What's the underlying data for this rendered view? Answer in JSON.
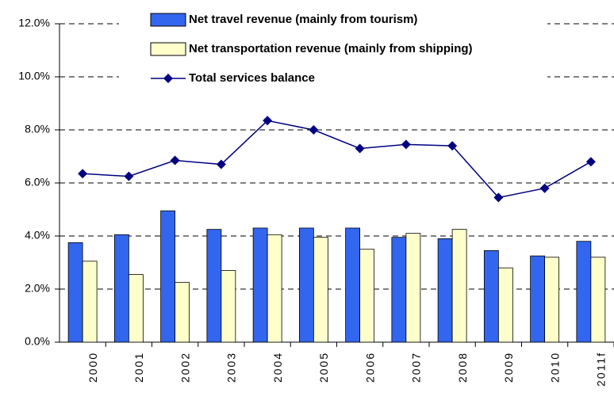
{
  "chart_data": {
    "type": "bar_line",
    "categories": [
      "2000",
      "2001",
      "2002",
      "2003",
      "2004",
      "2005",
      "2006",
      "2007",
      "2008",
      "2009",
      "2010",
      "2011f"
    ],
    "series": [
      {
        "name": "Net travel revenue (mainly from tourism)",
        "kind": "bar",
        "color": "#3366ee",
        "values": [
          3.75,
          4.05,
          4.95,
          4.25,
          4.3,
          4.3,
          4.3,
          3.95,
          3.9,
          3.45,
          3.25,
          3.8
        ]
      },
      {
        "name": "Net transportation revenue (mainly from shipping)",
        "kind": "bar",
        "color": "#ffffcc",
        "values": [
          3.05,
          2.55,
          2.25,
          2.7,
          4.05,
          3.95,
          3.5,
          4.1,
          4.25,
          2.8,
          3.2,
          3.2
        ]
      },
      {
        "name": "Total services balance",
        "kind": "line",
        "color": "#000080",
        "values": [
          6.35,
          6.25,
          6.85,
          6.7,
          8.35,
          8.0,
          7.3,
          7.45,
          7.4,
          5.45,
          5.8,
          6.8
        ]
      }
    ],
    "ylim": [
      0,
      12
    ],
    "yticks": [
      {
        "value": 0,
        "label": "0.0%"
      },
      {
        "value": 2,
        "label": "2.0%"
      },
      {
        "value": 4,
        "label": "4.0%"
      },
      {
        "value": 6,
        "label": "6.0%"
      },
      {
        "value": 8,
        "label": "8.0%"
      },
      {
        "value": 10,
        "label": "10.0%"
      },
      {
        "value": 12,
        "label": "12.0%"
      }
    ],
    "grid": true
  }
}
